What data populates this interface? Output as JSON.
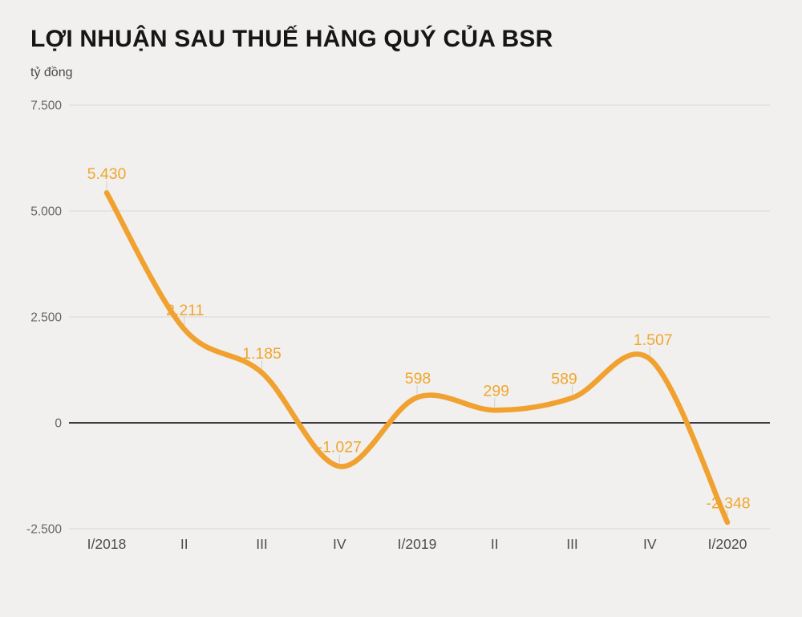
{
  "header": {
    "title": "LỢI NHUẬN SAU THUẾ HÀNG QUÝ CỦA BSR",
    "unit_label": "tỷ đồng"
  },
  "chart_data": {
    "type": "line",
    "title": "LỢI NHUẬN SAU THUẾ HÀNG QUÝ CỦA BSR",
    "subtitle_unit": "tỷ đồng",
    "categories": [
      "I/2018",
      "II",
      "III",
      "IV",
      "I/2019",
      "II",
      "III",
      "IV",
      "I/2020"
    ],
    "values": [
      5430,
      2211,
      1185,
      -1027,
      598,
      299,
      589,
      1507,
      -2348
    ],
    "value_labels": [
      "5.430",
      "2.211",
      "1.185",
      "-1.027",
      "598",
      "299",
      "589",
      "1.507",
      "-2.348"
    ],
    "label_dx": [
      0,
      1,
      0,
      0,
      1,
      2,
      -10,
      4,
      1
    ],
    "y_ticks": [
      7500,
      5000,
      2500,
      0,
      -2500
    ],
    "y_tick_labels": [
      "7.500",
      "5.000",
      "2.500",
      "0",
      "-2.500"
    ],
    "ylim": [
      -2500,
      7500
    ],
    "xlabel": "",
    "ylabel": "tỷ đồng",
    "grid": true,
    "legend": false,
    "colors": {
      "line": "#F0A12F",
      "data_label": "#F0A62F",
      "grid_line": "#d9d8d5",
      "zero_line": "#3d3d3d",
      "leader_line": "#cfcecb",
      "y_tick_text": "#666666",
      "x_tick_text": "#4c4c4c",
      "background": "#f1f0ee"
    }
  }
}
